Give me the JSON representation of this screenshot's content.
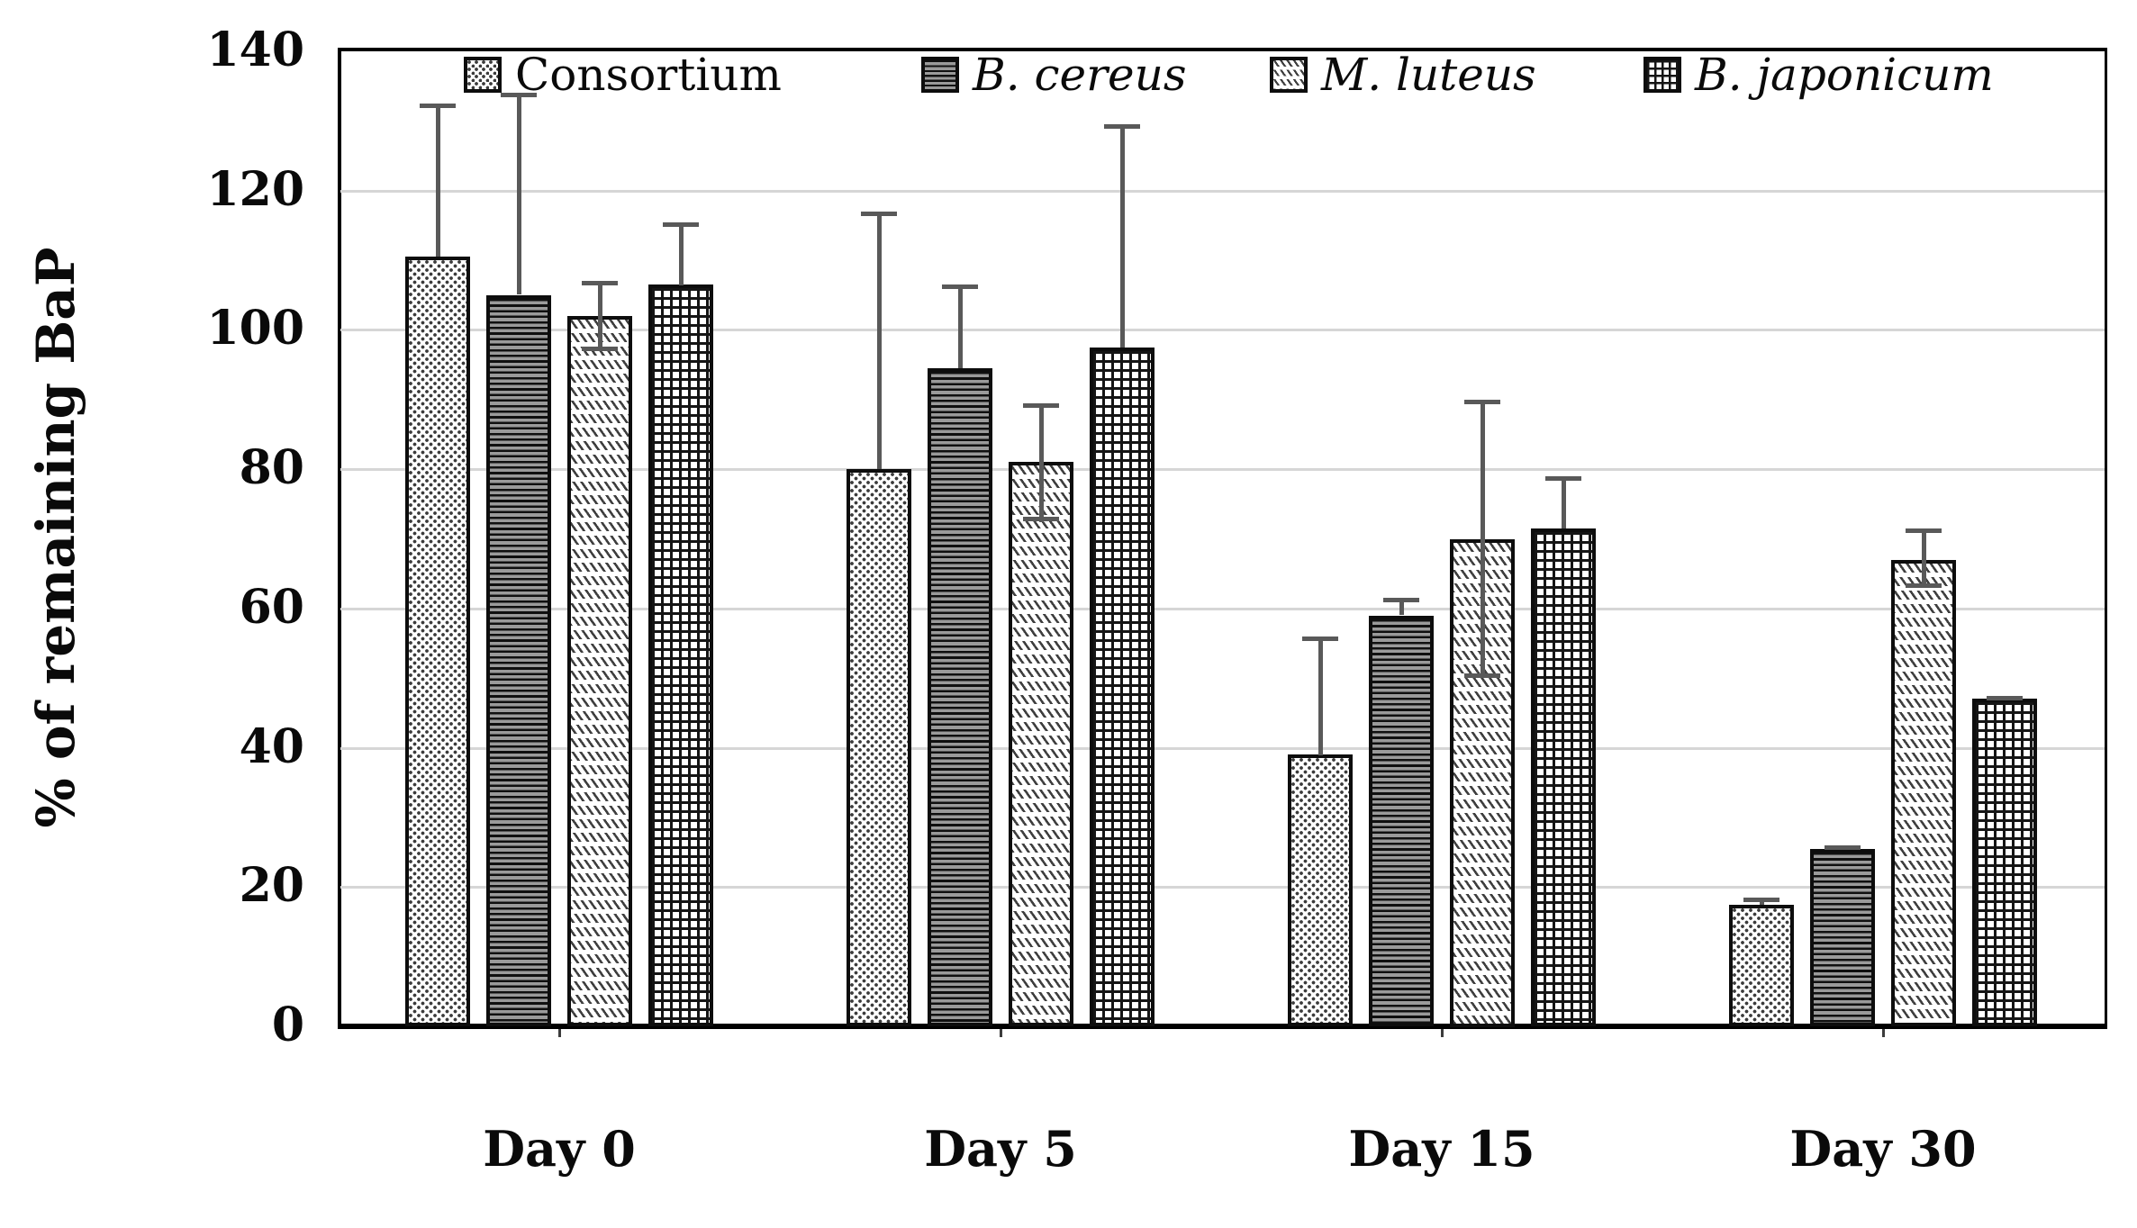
{
  "figure": {
    "y_axis_title": "% of remaining BaP",
    "colors": {
      "bar_border": "#0d0d0d",
      "pattern_ink": "#151515",
      "error_bar": "#595959",
      "gridline": "#d6d6d6",
      "frame": "#000000",
      "background": "#ffffff",
      "text": "#0a0a0a"
    }
  },
  "chart_data": {
    "type": "bar",
    "title": "",
    "xlabel": "",
    "ylabel": "% of remaining BaP",
    "categories": [
      "Day 0",
      "Day 5",
      "Day 15",
      "Day 30"
    ],
    "series": [
      {
        "name": "Consortium",
        "italic": false,
        "pattern": "pat-dots",
        "values": [
          110.5,
          80,
          39,
          17.5
        ],
        "err_up": [
          22,
          37,
          17,
          1
        ],
        "err_down": [
          0,
          0,
          0,
          0
        ]
      },
      {
        "name": "B. cereus",
        "italic": true,
        "pattern": "pat-hlines",
        "values": [
          105,
          94.5,
          59,
          25.5
        ],
        "err_up": [
          29,
          12,
          2.5,
          0.5
        ],
        "err_down": [
          0,
          0,
          0,
          0
        ]
      },
      {
        "name": "M. luteus",
        "italic": true,
        "pattern": "pat-diag",
        "values": [
          102,
          81,
          70,
          67
        ],
        "err_up": [
          5,
          8.5,
          20,
          4.5
        ],
        "err_down": [
          5,
          8.5,
          20,
          4
        ]
      },
      {
        "name": "B. japonicum",
        "italic": true,
        "pattern": "pat-grid",
        "values": [
          106.5,
          97.5,
          71.5,
          47
        ],
        "err_up": [
          9,
          32,
          7.5,
          0.5
        ],
        "err_down": [
          0,
          0,
          0,
          0
        ]
      }
    ],
    "ylim": [
      0,
      140
    ],
    "yticks": [
      0,
      20,
      40,
      60,
      80,
      100,
      120,
      140
    ],
    "grid": true,
    "legend_position": "top-inside",
    "error_bars": true
  }
}
